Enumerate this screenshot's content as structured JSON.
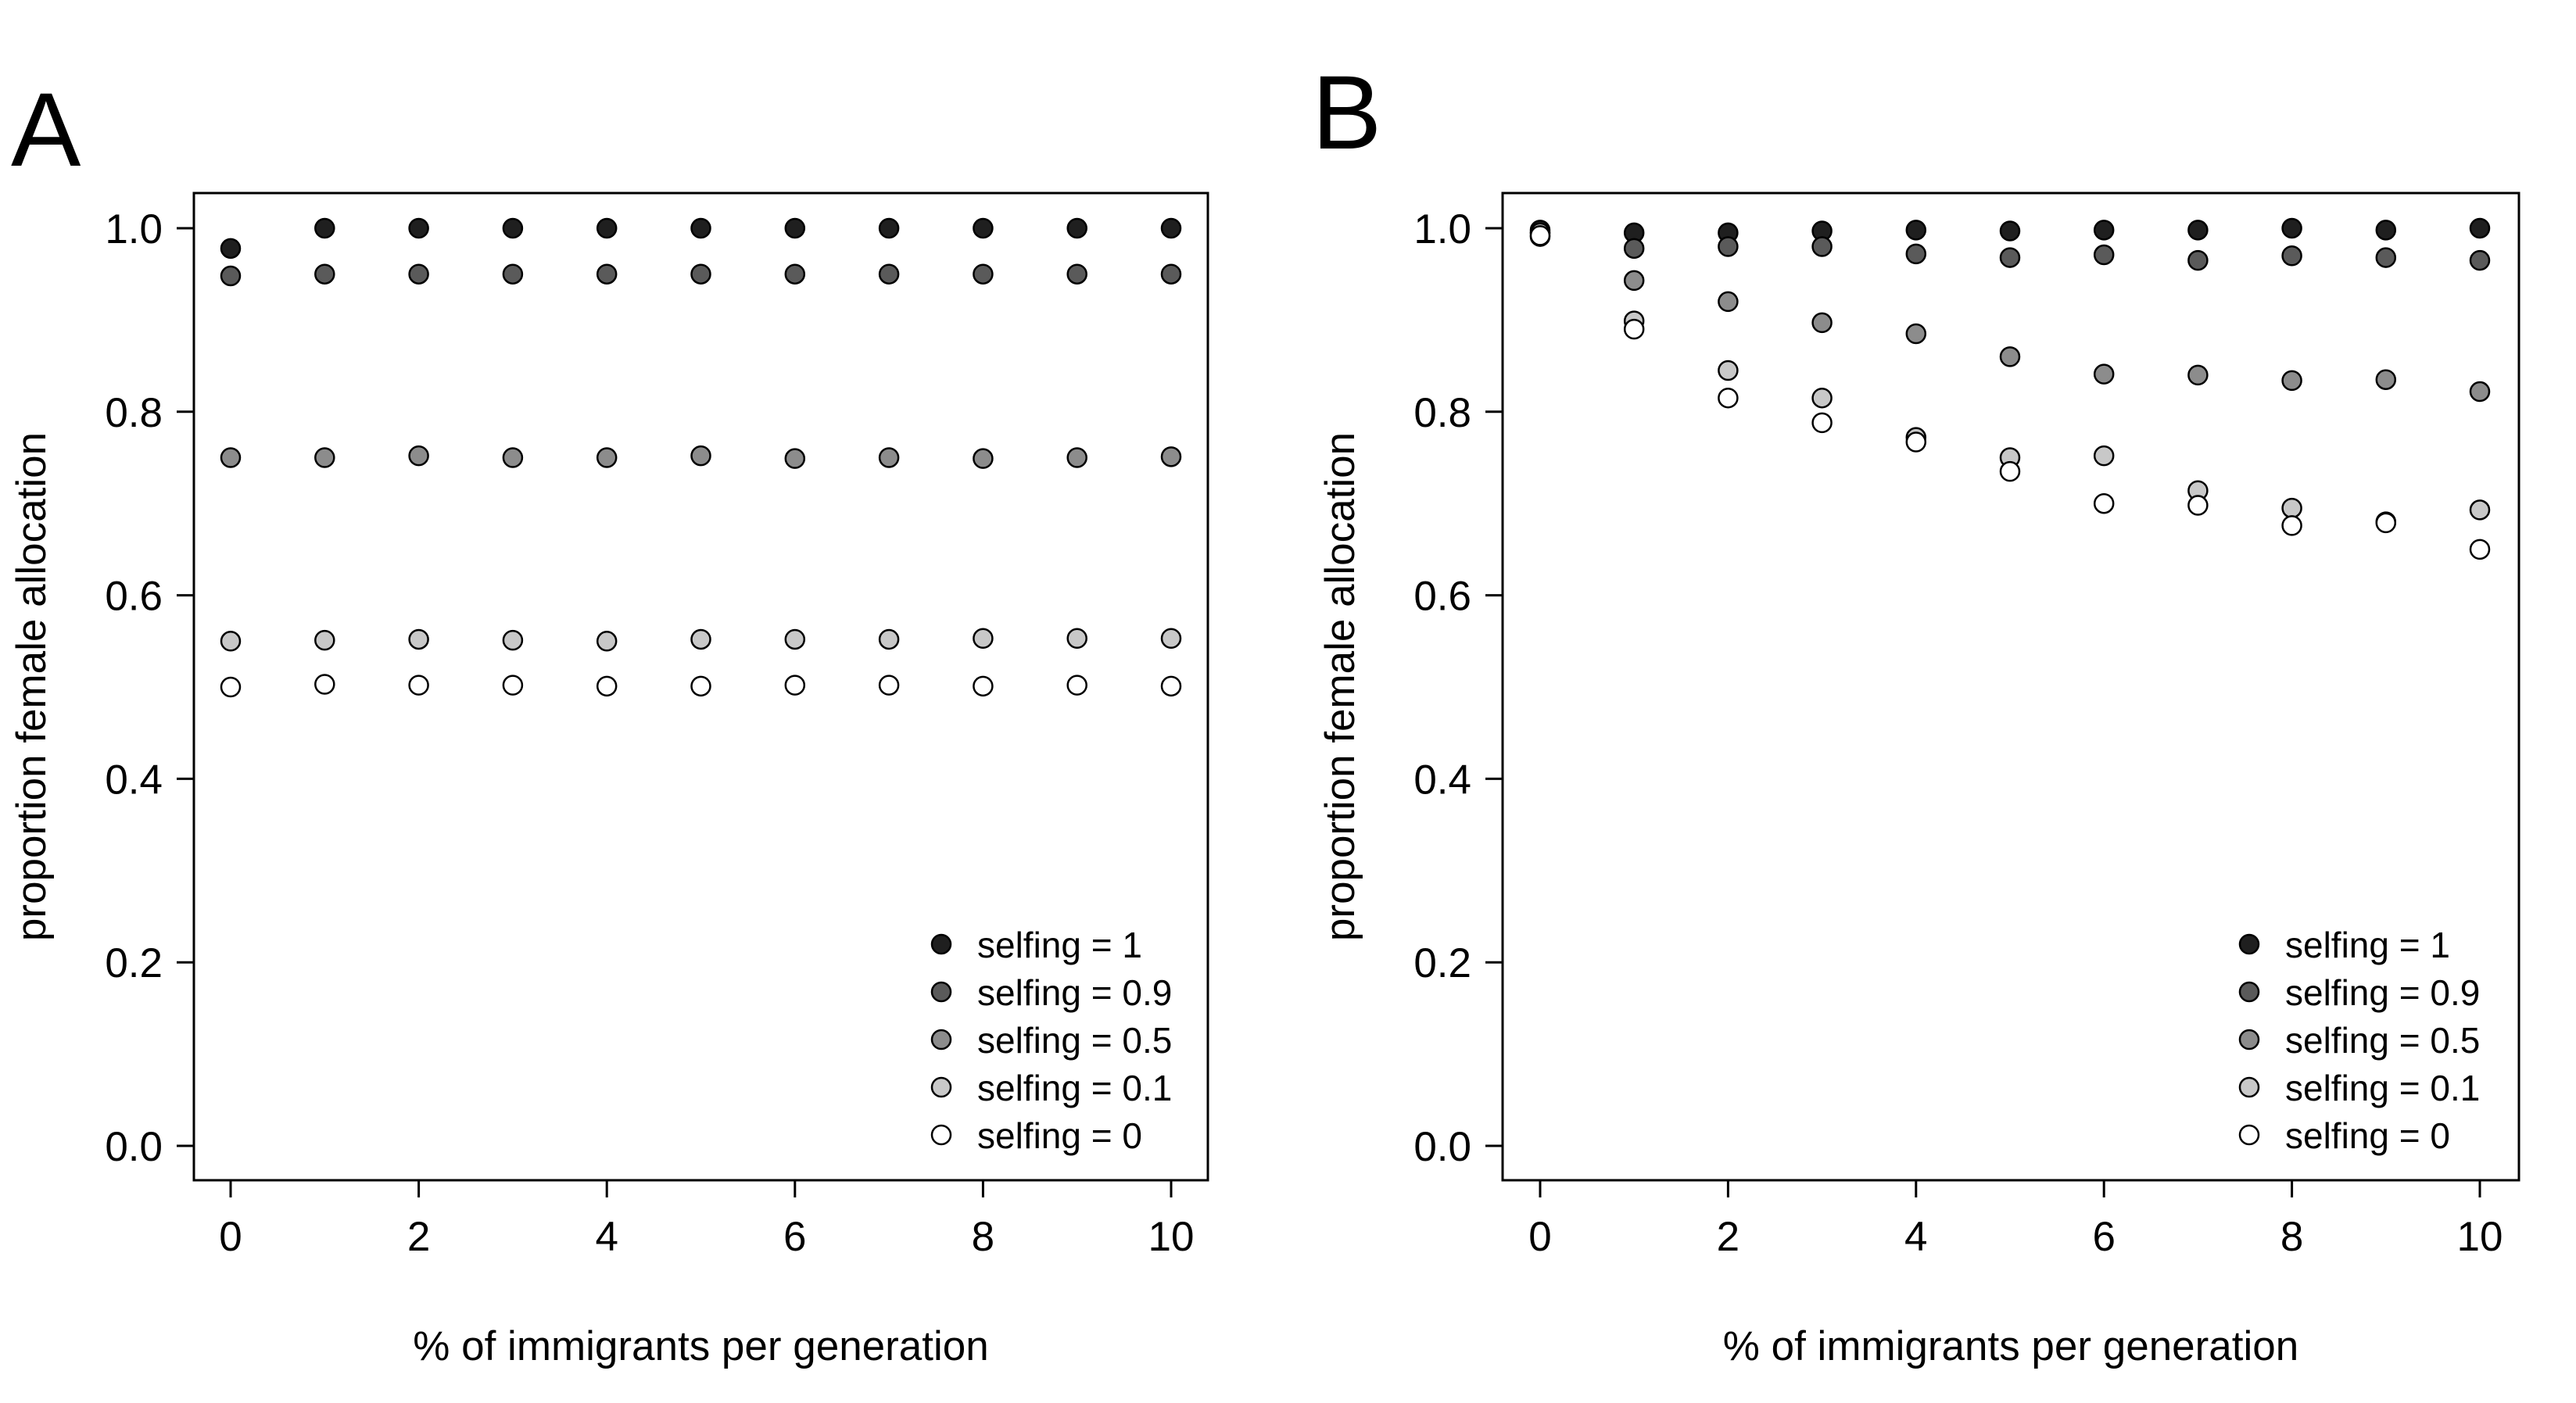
{
  "colors": {
    "selfing_1": "#1f1f1f",
    "selfing_0.9": "#5a5a5a",
    "selfing_0.5": "#8c8c8c",
    "selfing_0.1": "#c8c8c8",
    "selfing_0": "#ffffff",
    "stroke": "#000000"
  },
  "chart_data": [
    {
      "panel": "A",
      "type": "scatter",
      "xlabel": "% of immigrants per generation",
      "ylabel": "proportion female allocation",
      "xlim": [
        0,
        10
      ],
      "ylim": [
        0,
        1
      ],
      "xticks": [
        "0",
        "2",
        "4",
        "6",
        "8",
        "10"
      ],
      "yticks": [
        "0.0",
        "0.2",
        "0.4",
        "0.6",
        "0.8",
        "1.0"
      ],
      "legend_position": "bottom-right",
      "x": [
        0,
        1,
        2,
        3,
        4,
        5,
        6,
        7,
        8,
        9,
        10
      ],
      "series": [
        {
          "name": "selfing = 1",
          "values": [
            0.978,
            1.0,
            1.0,
            1.0,
            1.0,
            1.0,
            1.0,
            1.0,
            1.0,
            1.0,
            1.0
          ]
        },
        {
          "name": "selfing = 0.9",
          "values": [
            0.948,
            0.95,
            0.95,
            0.95,
            0.95,
            0.95,
            0.95,
            0.95,
            0.95,
            0.95,
            0.95
          ]
        },
        {
          "name": "selfing = 0.5",
          "values": [
            0.75,
            0.75,
            0.752,
            0.75,
            0.75,
            0.752,
            0.749,
            0.75,
            0.749,
            0.75,
            0.751
          ]
        },
        {
          "name": "selfing = 0.1",
          "values": [
            0.55,
            0.551,
            0.552,
            0.551,
            0.55,
            0.552,
            0.552,
            0.552,
            0.553,
            0.553,
            0.553
          ]
        },
        {
          "name": "selfing = 0",
          "values": [
            0.5,
            0.503,
            0.502,
            0.502,
            0.501,
            0.501,
            0.502,
            0.502,
            0.501,
            0.502,
            0.501
          ]
        }
      ]
    },
    {
      "panel": "B",
      "type": "scatter",
      "xlabel": "% of immigrants per generation",
      "ylabel": "proportion female allocation",
      "xlim": [
        0,
        10
      ],
      "ylim": [
        0,
        1
      ],
      "xticks": [
        "0",
        "2",
        "4",
        "6",
        "8",
        "10"
      ],
      "yticks": [
        "0.0",
        "0.2",
        "0.4",
        "0.6",
        "0.8",
        "1.0"
      ],
      "legend_position": "bottom-right",
      "x": [
        0,
        1,
        2,
        3,
        4,
        5,
        6,
        7,
        8,
        9,
        10
      ],
      "series": [
        {
          "name": "selfing = 1",
          "values": [
            0.998,
            0.995,
            0.995,
            0.997,
            0.998,
            0.997,
            0.998,
            0.998,
            1.0,
            0.998,
            1.0
          ]
        },
        {
          "name": "selfing = 0.9",
          "values": [
            0.991,
            0.978,
            0.98,
            0.98,
            0.972,
            0.968,
            0.971,
            0.965,
            0.97,
            0.968,
            0.965
          ]
        },
        {
          "name": "selfing = 0.5",
          "values": [
            0.995,
            0.943,
            0.92,
            0.897,
            0.885,
            0.86,
            0.841,
            0.84,
            0.834,
            0.835,
            0.822
          ]
        },
        {
          "name": "selfing = 0.1",
          "values": [
            0.995,
            0.899,
            0.845,
            0.815,
            0.772,
            0.75,
            0.752,
            0.714,
            0.695,
            0.68,
            0.693
          ]
        },
        {
          "name": "selfing = 0",
          "values": [
            0.992,
            0.89,
            0.815,
            0.788,
            0.767,
            0.735,
            0.7,
            0.698,
            0.676,
            0.679,
            0.65
          ]
        }
      ]
    }
  ]
}
